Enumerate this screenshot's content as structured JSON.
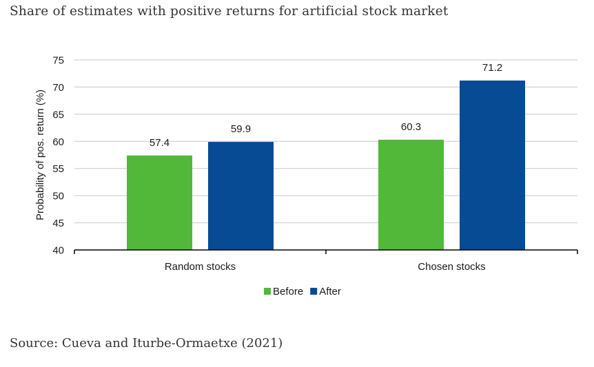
{
  "page": {
    "title": "Share of estimates with positive returns for artificial stock market",
    "source": "Source: Cueva and Iturbe-Ormaetxe (2021)"
  },
  "chart_data": {
    "type": "bar",
    "title": "",
    "xlabel": "",
    "ylabel": "Probability of pos. return (%)",
    "categories": [
      "Random stocks",
      "Chosen stocks"
    ],
    "series": [
      {
        "name": "Before",
        "values": [
          57.4,
          60.3
        ],
        "color": "#52b83a"
      },
      {
        "name": "After",
        "values": [
          59.9,
          71.2
        ],
        "color": "#064b94"
      }
    ],
    "data_labels": [
      [
        "57.4",
        "60.3"
      ],
      [
        "59.9",
        "71.2"
      ]
    ],
    "ylim": [
      40,
      75
    ],
    "yticks": [
      40,
      45,
      50,
      55,
      60,
      65,
      70,
      75
    ],
    "grid": true,
    "legend_position": "bottom-center"
  }
}
